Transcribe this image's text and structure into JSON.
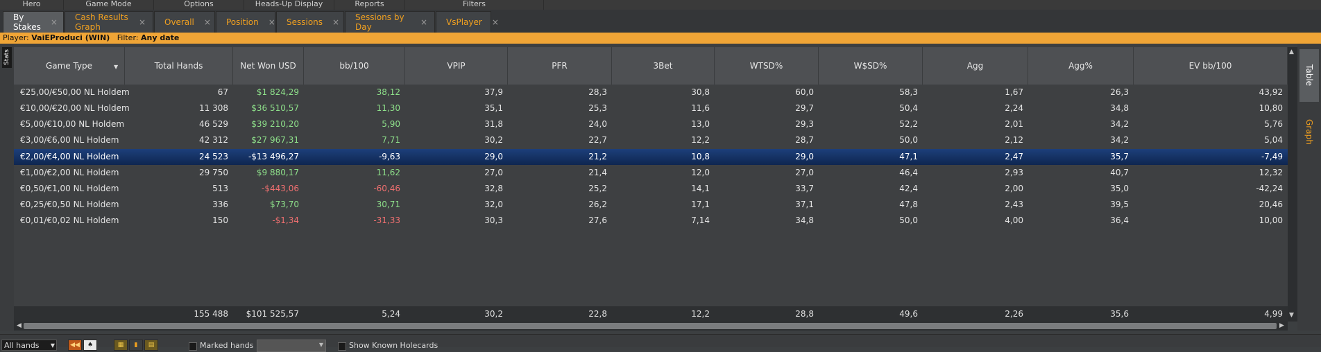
{
  "menu": [
    {
      "label": "Hero"
    },
    {
      "label": "Game Mode"
    },
    {
      "label": "Options"
    },
    {
      "label": "Heads-Up Display"
    },
    {
      "label": "Reports"
    },
    {
      "label": "Filters"
    }
  ],
  "tabs": [
    {
      "label": "By Stakes",
      "active": true
    },
    {
      "label": "Cash Results Graph"
    },
    {
      "label": "Overall"
    },
    {
      "label": "Position"
    },
    {
      "label": "Sessions"
    },
    {
      "label": "Sessions by Day"
    },
    {
      "label": "VsPlayer"
    }
  ],
  "player_bar": {
    "player_label": "Player:",
    "player_value": "VaiEProduci (WIN)",
    "filter_label": "Filter:",
    "filter_value": "Any date"
  },
  "stats_tab_label": "Stats",
  "columns": [
    "Game Type",
    "Total Hands",
    "Net Won USD",
    "bb/100",
    "VPIP",
    "PFR",
    "3Bet",
    "WTSD%",
    "W$SD%",
    "Agg",
    "Agg%",
    "EV bb/100"
  ],
  "rows": [
    {
      "cells": [
        "€25,00/€50,00 NL Holdem",
        "67",
        "$1 824,29",
        "38,12",
        "37,9",
        "28,3",
        "30,8",
        "60,0",
        "58,3",
        "1,67",
        "26,3",
        "43,92"
      ],
      "selected": false
    },
    {
      "cells": [
        "€10,00/€20,00 NL Holdem",
        "11 308",
        "$36 510,57",
        "11,30",
        "35,1",
        "25,3",
        "11,6",
        "29,7",
        "50,4",
        "2,24",
        "34,8",
        "10,80"
      ],
      "selected": false
    },
    {
      "cells": [
        "€5,00/€10,00 NL Holdem",
        "46 529",
        "$39 210,20",
        "5,90",
        "31,8",
        "24,0",
        "13,0",
        "29,3",
        "52,2",
        "2,01",
        "34,2",
        "5,76"
      ],
      "selected": false
    },
    {
      "cells": [
        "€3,00/€6,00 NL Holdem",
        "42 312",
        "$27 967,31",
        "7,71",
        "30,2",
        "22,7",
        "12,2",
        "28,7",
        "50,0",
        "2,12",
        "34,2",
        "5,04"
      ],
      "selected": false
    },
    {
      "cells": [
        "€2,00/€4,00 NL Holdem",
        "24 523",
        "-$13 496,27",
        "-9,63",
        "29,0",
        "21,2",
        "10,8",
        "29,0",
        "47,1",
        "2,47",
        "35,7",
        "-7,49"
      ],
      "selected": true
    },
    {
      "cells": [
        "€1,00/€2,00 NL Holdem",
        "29 750",
        "$9 880,17",
        "11,62",
        "27,0",
        "21,4",
        "12,0",
        "27,0",
        "46,4",
        "2,93",
        "40,7",
        "12,32"
      ],
      "selected": false
    },
    {
      "cells": [
        "€0,50/€1,00 NL Holdem",
        "513",
        "-$443,06",
        "-60,46",
        "32,8",
        "25,2",
        "14,1",
        "33,7",
        "42,4",
        "2,00",
        "35,0",
        "-42,24"
      ],
      "selected": false
    },
    {
      "cells": [
        "€0,25/€0,50 NL Holdem",
        "336",
        "$73,70",
        "30,71",
        "32,0",
        "26,2",
        "17,1",
        "37,1",
        "47,8",
        "2,43",
        "39,5",
        "20,46"
      ],
      "selected": false
    },
    {
      "cells": [
        "€0,01/€0,02 NL Holdem",
        "150",
        "-$1,34",
        "-31,33",
        "30,3",
        "27,6",
        "7,14",
        "34,8",
        "50,0",
        "4,00",
        "36,4",
        "10,00"
      ],
      "selected": false
    }
  ],
  "totals": [
    "",
    "155 488",
    "$101 525,57",
    "5,24",
    "30,2",
    "22,8",
    "12,2",
    "28,8",
    "49,6",
    "2,26",
    "35,6",
    "4,99"
  ],
  "side_tabs": {
    "table": "Table",
    "graph": "Graph"
  },
  "bottom": {
    "hands_filter": "All hands",
    "marked_hands_label": "Marked hands",
    "show_known_label": "Show Known Holecards"
  },
  "colors": {
    "accent": "#f0a536",
    "positive": "#8ee08a",
    "negative": "#f07070",
    "selected_row": "#0e2650"
  }
}
